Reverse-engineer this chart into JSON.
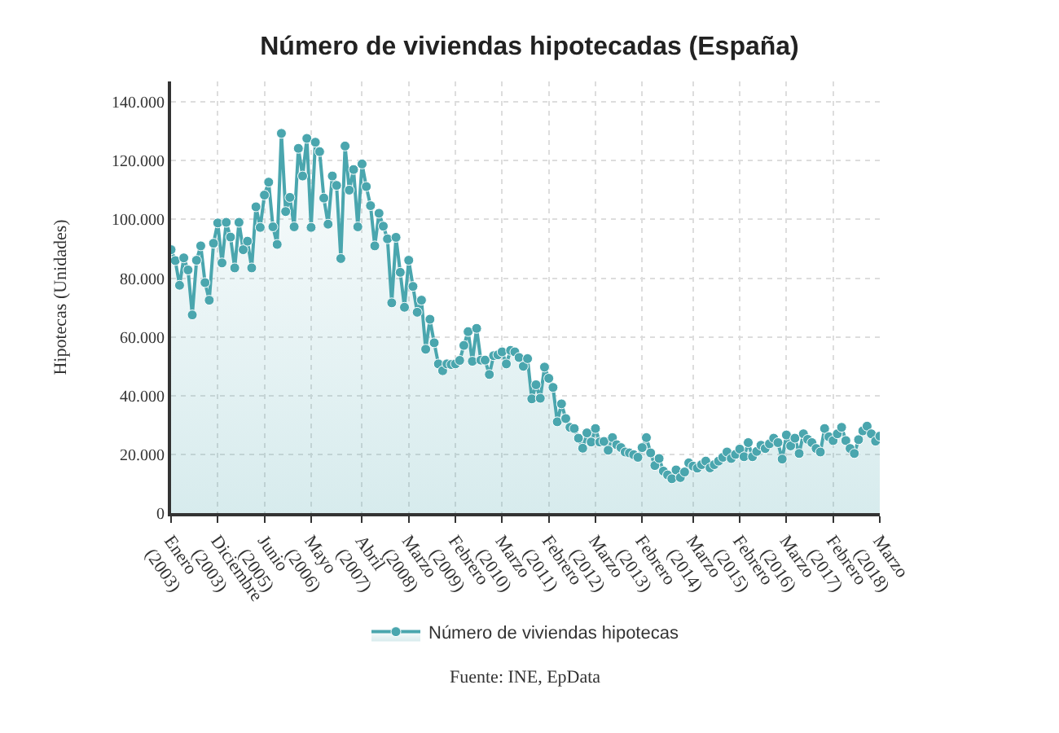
{
  "chart_data": {
    "type": "area",
    "title": "Número de viviendas hipotecadas (España)",
    "ylabel": "Hipotecas (Unidades)",
    "categories": [
      "Enero (2003)",
      null,
      null,
      null,
      null,
      null,
      null,
      null,
      null,
      null,
      null,
      "Diciembre (2003)",
      null,
      null,
      null,
      null,
      null,
      null,
      null,
      null,
      null,
      null,
      "Junio (2005)",
      null,
      null,
      null,
      null,
      null,
      null,
      null,
      null,
      null,
      null,
      "Mayo (2006)",
      null,
      null,
      null,
      null,
      null,
      null,
      null,
      null,
      null,
      null,
      null,
      "Abril (2007)",
      null,
      null,
      null,
      null,
      null,
      null,
      null,
      null,
      null,
      null,
      "Marzo (2008)",
      null,
      null,
      null,
      null,
      null,
      null,
      null,
      null,
      null,
      null,
      "Febrero (2009)",
      null,
      null,
      null,
      null,
      null,
      null,
      null,
      null,
      null,
      null,
      "Marzo (2010)",
      null,
      null,
      null,
      null,
      null,
      null,
      null,
      null,
      null,
      null,
      "Febrero (2011)",
      null,
      null,
      null,
      null,
      null,
      null,
      null,
      null,
      null,
      null,
      "Marzo (2012)",
      null,
      null,
      null,
      null,
      null,
      null,
      null,
      null,
      null,
      null,
      "Febrero (2013)",
      null,
      null,
      null,
      null,
      null,
      null,
      null,
      null,
      null,
      null,
      null,
      "Marzo (2014)",
      null,
      null,
      null,
      null,
      null,
      null,
      null,
      null,
      null,
      null,
      "Febrero (2015)",
      null,
      null,
      null,
      null,
      null,
      null,
      null,
      null,
      null,
      null,
      "Marzo (2016)",
      null,
      null,
      null,
      null,
      null,
      null,
      null,
      null,
      null,
      null,
      "Febrero (2017)",
      null,
      null,
      null,
      null,
      null,
      null,
      null,
      null,
      null,
      null,
      "Marzo (2018)"
    ],
    "series": [
      {
        "name": "Número de viviendas hipotecas",
        "color": "#4aa6ae",
        "values": [
          89700,
          86000,
          77600,
          86900,
          82800,
          67500,
          86100,
          91000,
          78500,
          72500,
          91900,
          98800,
          85200,
          99000,
          94000,
          83500,
          99000,
          89700,
          92600,
          83500,
          104300,
          97300,
          108300,
          112700,
          97500,
          91500,
          129300,
          102700,
          107500,
          97500,
          124200,
          114800,
          127600,
          97300,
          126300,
          123100,
          107300,
          98400,
          114800,
          111600,
          86700,
          125000,
          110000,
          117000,
          97500,
          118900,
          111200,
          104700,
          91000,
          102100,
          97700,
          93400,
          71600,
          93900,
          82000,
          70100,
          86100,
          77200,
          68400,
          72500,
          55800,
          66000,
          58000,
          50800,
          48500,
          50800,
          50600,
          50800,
          52000,
          57100,
          61800,
          51700,
          62900,
          52100,
          52100,
          47200,
          53600,
          53900,
          54900,
          50800,
          55400,
          54900,
          53000,
          50000,
          52600,
          38900,
          43700,
          39100,
          49700,
          45900,
          42800,
          31100,
          37200,
          32200,
          29200,
          28800,
          25500,
          22100,
          27300,
          24200,
          28800,
          24200,
          24400,
          21400,
          25700,
          23300,
          22300,
          20800,
          20500,
          19900,
          19000,
          22300,
          25700,
          20500,
          16200,
          18600,
          14300,
          13000,
          11700,
          14700,
          12100,
          14000,
          17100,
          16000,
          15300,
          16500,
          17700,
          15400,
          16500,
          17700,
          19000,
          20800,
          18600,
          20000,
          21800,
          19200,
          24000,
          19200,
          21000,
          23100,
          22000,
          23600,
          25500,
          24000,
          18400,
          26600,
          22900,
          25500,
          20300,
          27000,
          25100,
          24000,
          22000,
          20800,
          28800,
          26000,
          24700,
          27000,
          29200,
          24700,
          22000,
          20300,
          25000,
          28000,
          29600,
          27000,
          24500,
          26200
        ]
      }
    ],
    "ylim": [
      0,
      147000
    ],
    "yticks": [
      {
        "value": 0,
        "label": "0"
      },
      {
        "value": 20000,
        "label": "20.000"
      },
      {
        "value": 40000,
        "label": "40.000"
      },
      {
        "value": 60000,
        "label": "60.000"
      },
      {
        "value": 80000,
        "label": "80.000"
      },
      {
        "value": 100000,
        "label": "100.000"
      },
      {
        "value": 120000,
        "label": "120.000"
      },
      {
        "value": 140000,
        "label": "140.000"
      }
    ],
    "grid": true,
    "legend": "bottom",
    "marker": "circle",
    "annotations": [
      "Fuente: INE, EpData"
    ]
  }
}
